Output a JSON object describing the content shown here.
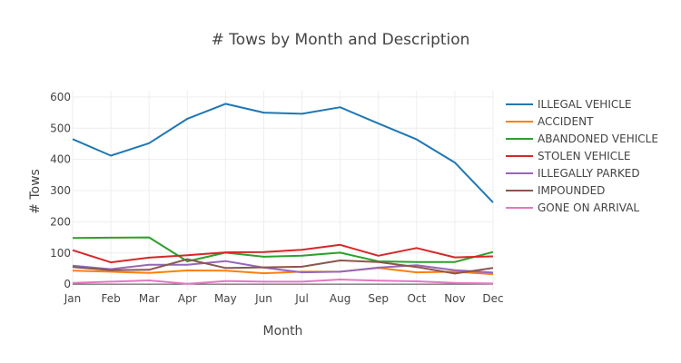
{
  "chart_data": {
    "type": "line",
    "title": "# Tows by Month and Description",
    "xlabel": "Month",
    "ylabel": "# Tows",
    "categories": [
      "Jan",
      "Feb",
      "Mar",
      "Apr",
      "May",
      "Jun",
      "Jul",
      "Aug",
      "Sep",
      "Oct",
      "Nov",
      "Dec"
    ],
    "ylim": [
      -20,
      620
    ],
    "yticks": [
      0,
      100,
      200,
      300,
      400,
      500,
      600
    ],
    "grid": true,
    "legend_position": "right",
    "series": [
      {
        "name": "ILLEGAL VEHICLE",
        "color": "#1f77b4",
        "values": [
          465,
          412,
          452,
          530,
          578,
          550,
          546,
          567,
          515,
          464,
          390,
          262
        ]
      },
      {
        "name": "ACCIDENT",
        "color": "#ff7f0e",
        "values": [
          43,
          40,
          36,
          44,
          43,
          35,
          40,
          40,
          52,
          38,
          40,
          32
        ]
      },
      {
        "name": "ABANDONED VEHICLE",
        "color": "#2ca02c",
        "values": [
          148,
          149,
          150,
          73,
          101,
          88,
          91,
          101,
          73,
          71,
          71,
          103
        ]
      },
      {
        "name": "STOLEN VEHICLE",
        "color": "#d62728",
        "values": [
          109,
          70,
          85,
          93,
          102,
          103,
          110,
          126,
          91,
          116,
          86,
          89
        ]
      },
      {
        "name": "ILLEGALLY PARKED",
        "color": "#9467bd",
        "values": [
          59,
          48,
          62,
          62,
          74,
          53,
          38,
          40,
          53,
          61,
          45,
          37
        ]
      },
      {
        "name": "IMPOUNDED",
        "color": "#8c564b",
        "values": [
          55,
          45,
          46,
          80,
          52,
          54,
          56,
          76,
          71,
          55,
          34,
          52
        ]
      },
      {
        "name": "GONE ON ARRIVAL",
        "color": "#e377c2",
        "values": [
          4,
          8,
          12,
          1,
          10,
          8,
          8,
          15,
          11,
          9,
          4,
          2
        ]
      }
    ]
  }
}
